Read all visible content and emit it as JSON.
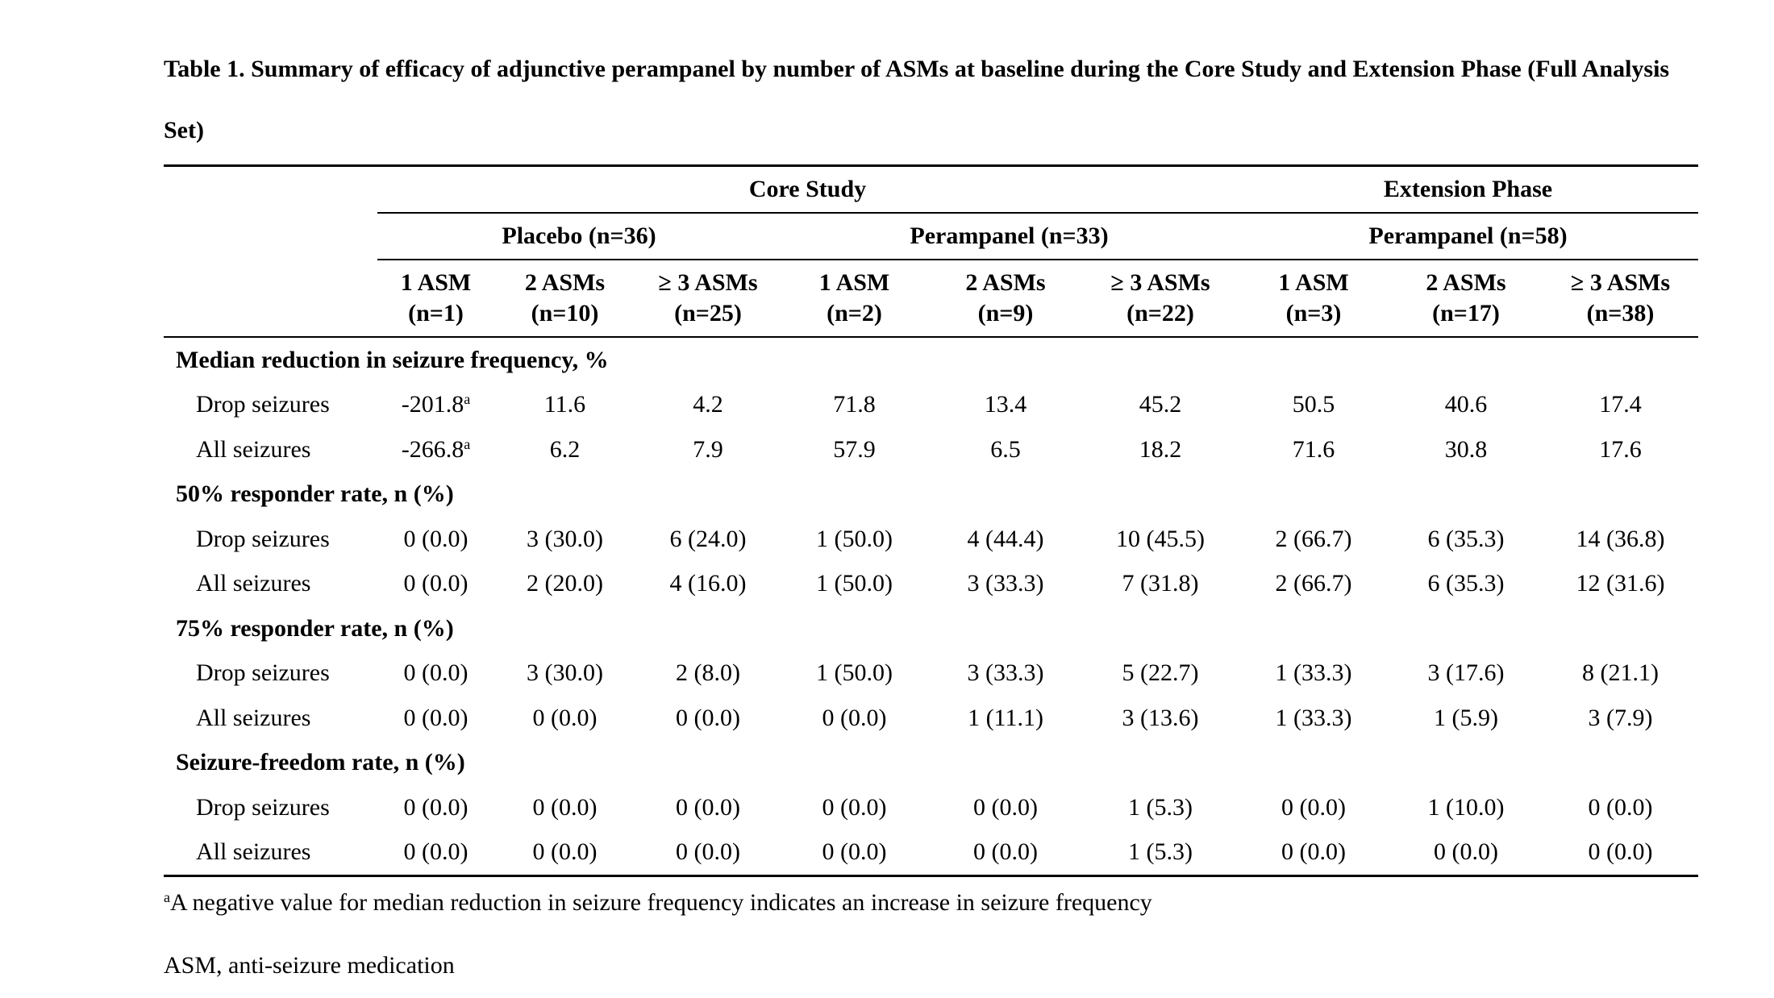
{
  "caption": "Table 1. Summary of efficacy of adjunctive perampanel by number of ASMs at baseline during the Core Study and Extension Phase (Full Analysis Set)",
  "header": {
    "core_study": "Core Study",
    "extension_phase": "Extension Phase",
    "placebo_group": "Placebo (n=36)",
    "perampanel_core_group": "Perampanel (n=33)",
    "perampanel_ext_group": "Perampanel (n=58)",
    "columns": [
      {
        "asm": "1 ASM",
        "n": "(n=1)"
      },
      {
        "asm": "2 ASMs",
        "n": "(n=10)"
      },
      {
        "asm": "≥ 3 ASMs",
        "n": "(n=25)"
      },
      {
        "asm": "1 ASM",
        "n": "(n=2)"
      },
      {
        "asm": "2 ASMs",
        "n": "(n=9)"
      },
      {
        "asm": "≥ 3 ASMs",
        "n": "(n=22)"
      },
      {
        "asm": "1 ASM",
        "n": "(n=3)"
      },
      {
        "asm": "2 ASMs",
        "n": "(n=17)"
      },
      {
        "asm": "≥ 3 ASMs",
        "n": "(n=38)"
      }
    ]
  },
  "sections": [
    {
      "title": "Median reduction in seizure frequency, %",
      "rows": [
        {
          "label": "Drop seizures",
          "values": [
            "-201.8",
            "11.6",
            "4.2",
            "71.8",
            "13.4",
            "45.2",
            "50.5",
            "40.6",
            "17.4"
          ],
          "first_sup": "a"
        },
        {
          "label": "All seizures",
          "values": [
            "-266.8",
            "6.2",
            "7.9",
            "57.9",
            "6.5",
            "18.2",
            "71.6",
            "30.8",
            "17.6"
          ],
          "first_sup": "a"
        }
      ]
    },
    {
      "title": "50% responder rate, n (%)",
      "rows": [
        {
          "label": "Drop seizures",
          "values": [
            "0 (0.0)",
            "3 (30.0)",
            "6 (24.0)",
            "1 (50.0)",
            "4 (44.4)",
            "10 (45.5)",
            "2 (66.7)",
            "6 (35.3)",
            "14 (36.8)"
          ]
        },
        {
          "label": "All seizures",
          "values": [
            "0 (0.0)",
            "2 (20.0)",
            "4 (16.0)",
            "1 (50.0)",
            "3 (33.3)",
            "7 (31.8)",
            "2 (66.7)",
            "6 (35.3)",
            "12 (31.6)"
          ]
        }
      ]
    },
    {
      "title": "75% responder rate, n (%)",
      "rows": [
        {
          "label": "Drop seizures",
          "values": [
            "0 (0.0)",
            "3 (30.0)",
            "2 (8.0)",
            "1 (50.0)",
            "3 (33.3)",
            "5 (22.7)",
            "1 (33.3)",
            "3 (17.6)",
            "8 (21.1)"
          ]
        },
        {
          "label": "All seizures",
          "values": [
            "0 (0.0)",
            "0 (0.0)",
            "0 (0.0)",
            "0 (0.0)",
            "1 (11.1)",
            "3 (13.6)",
            "1 (33.3)",
            "1 (5.9)",
            "3 (7.9)"
          ]
        }
      ]
    },
    {
      "title": "Seizure-freedom rate, n (%)",
      "rows": [
        {
          "label": "Drop seizures",
          "values": [
            "0 (0.0)",
            "0 (0.0)",
            "0 (0.0)",
            "0 (0.0)",
            "0 (0.0)",
            "1 (5.3)",
            "0 (0.0)",
            "1 (10.0)",
            "0 (0.0)"
          ]
        },
        {
          "label": "All seizures",
          "values": [
            "0 (0.0)",
            "0 (0.0)",
            "0 (0.0)",
            "0 (0.0)",
            "0 (0.0)",
            "1 (5.3)",
            "0 (0.0)",
            "0 (0.0)",
            "0 (0.0)"
          ]
        }
      ]
    }
  ],
  "footnotes": {
    "marker": "a",
    "note_a": "A negative value for median reduction in seizure frequency indicates an increase in seizure frequency",
    "abbreviation": "ASM, anti-seizure medication"
  }
}
